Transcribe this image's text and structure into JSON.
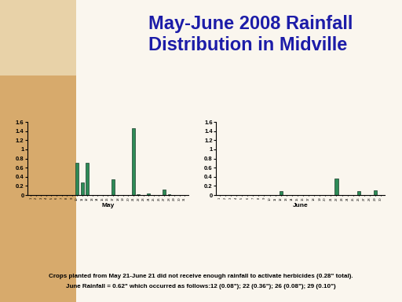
{
  "title": "May-June 2008 Rainfall Distribution in Midville",
  "footnote": [
    "Crops planted from May 21-June 21 did not receive enough rainfall to activate herbicides (0.28\" total).",
    "June Rainfall = 0.62\" which occurred as follows:12 (0.08\"); 22 (0.36\"); 26 (0.08\"); 29 (0.10\")"
  ],
  "chart_data": [
    {
      "type": "bar",
      "x_label": "May",
      "categories": [
        "1",
        "2",
        "3",
        "4",
        "5",
        "6",
        "7",
        "8",
        "9",
        "10",
        "11",
        "12",
        "13",
        "14",
        "15",
        "16",
        "17",
        "18",
        "19",
        "20",
        "21",
        "22",
        "23",
        "24",
        "25",
        "26",
        "27",
        "28",
        "29",
        "30",
        "31"
      ],
      "values": [
        0,
        0,
        0,
        0,
        0,
        0,
        0,
        0,
        0,
        0.7,
        0.27,
        0.7,
        0,
        0,
        0,
        0,
        0.35,
        0,
        0,
        0,
        1.47,
        0.02,
        0,
        0.03,
        0,
        0,
        0.12,
        0.02,
        0,
        0,
        0
      ],
      "color": "#2e8b57",
      "ylim": [
        0,
        1.6
      ],
      "yticks": [
        0,
        0.2,
        0.4,
        0.6,
        0.8,
        1,
        1.2,
        1.4,
        1.6
      ],
      "grid": false
    },
    {
      "type": "bar",
      "x_label": "June",
      "categories": [
        "1",
        "2",
        "3",
        "4",
        "5",
        "6",
        "7",
        "8",
        "9",
        "10",
        "11",
        "12",
        "13",
        "14",
        "15",
        "16",
        "17",
        "18",
        "19",
        "20",
        "21",
        "22",
        "23",
        "24",
        "25",
        "26",
        "27",
        "28",
        "29",
        "30"
      ],
      "values": [
        0,
        0,
        0,
        0,
        0,
        0,
        0,
        0,
        0,
        0,
        0,
        0.08,
        0,
        0,
        0,
        0,
        0,
        0,
        0,
        0,
        0,
        0.36,
        0,
        0,
        0,
        0.08,
        0,
        0,
        0.1,
        0
      ],
      "color": "#2e8b57",
      "ylim": [
        0,
        1.6
      ],
      "yticks": [
        0,
        0.2,
        0.4,
        0.6,
        0.8,
        1,
        1.2,
        1.4,
        1.6
      ],
      "grid": false
    }
  ]
}
